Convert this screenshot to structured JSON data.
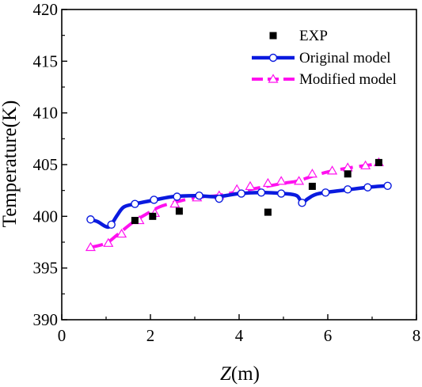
{
  "chart_data": {
    "type": "line",
    "title": "",
    "xlabel_italic": "Z",
    "xlabel_unit": "(m)",
    "ylabel": "Temperature(K)",
    "xlim": [
      0,
      8
    ],
    "ylim": [
      390,
      420
    ],
    "xticks": [
      0,
      2,
      4,
      6,
      8
    ],
    "yticks": [
      390,
      395,
      400,
      405,
      410,
      415,
      420
    ],
    "grid": false,
    "legend_position": "top-right",
    "series": [
      {
        "name": "EXP",
        "kind": "scatter",
        "marker": "filled-square",
        "color": "#000000",
        "x": [
          1.65,
          2.05,
          2.65,
          4.65,
          5.65,
          6.45,
          7.15
        ],
        "y": [
          399.6,
          400.0,
          400.5,
          400.4,
          402.9,
          404.1,
          405.2
        ]
      },
      {
        "name": "Original model",
        "kind": "line",
        "marker": "open-circle",
        "color": "#0a1adf",
        "line": {
          "x": [
            0.62,
            0.8,
            1.0,
            1.1,
            1.25,
            1.4,
            1.65,
            2.0,
            2.5,
            3.0,
            3.5,
            4.0,
            4.5,
            5.0,
            5.3,
            5.42,
            5.55,
            5.8,
            6.5,
            7.0,
            7.35
          ],
          "y": [
            399.7,
            399.5,
            399.0,
            399.1,
            400.1,
            400.9,
            401.2,
            401.5,
            401.9,
            402.0,
            401.9,
            402.2,
            402.3,
            402.2,
            402.0,
            401.3,
            401.7,
            402.2,
            402.6,
            402.85,
            402.95
          ]
        },
        "marker_x": [
          0.65,
          1.12,
          1.65,
          2.08,
          2.6,
          3.1,
          3.55,
          4.05,
          4.5,
          4.95,
          5.42,
          5.95,
          6.45,
          6.9,
          7.35
        ],
        "marker_y": [
          399.7,
          399.2,
          401.2,
          401.6,
          401.9,
          402.0,
          401.7,
          402.2,
          402.3,
          402.2,
          401.3,
          402.3,
          402.6,
          402.8,
          402.95
        ]
      },
      {
        "name": "Modified model",
        "kind": "line",
        "marker": "open-triangle",
        "color": "#ff10ef",
        "line": {
          "x": [
            0.65,
            1.0,
            1.25,
            1.6,
            1.9,
            2.2,
            2.5,
            3.0,
            3.5,
            4.0,
            4.5,
            5.0,
            5.3,
            5.6,
            6.0,
            6.5,
            7.0,
            7.2
          ],
          "y": [
            397.0,
            397.4,
            398.2,
            399.4,
            400.2,
            400.9,
            401.3,
            401.8,
            402.0,
            402.4,
            402.8,
            403.2,
            403.4,
            403.8,
            404.3,
            404.7,
            405.0,
            405.2
          ]
        },
        "marker_x": [
          0.65,
          1.05,
          1.35,
          1.75,
          2.1,
          2.55,
          3.05,
          3.55,
          3.95,
          4.25,
          4.65,
          4.95,
          5.35,
          5.65,
          6.1,
          6.45,
          6.85,
          7.15
        ],
        "marker_y": [
          397.0,
          397.4,
          398.3,
          399.6,
          400.3,
          401.2,
          401.8,
          402.0,
          402.6,
          402.9,
          403.2,
          403.4,
          403.4,
          404.1,
          404.4,
          404.7,
          404.9,
          405.2
        ]
      }
    ]
  }
}
